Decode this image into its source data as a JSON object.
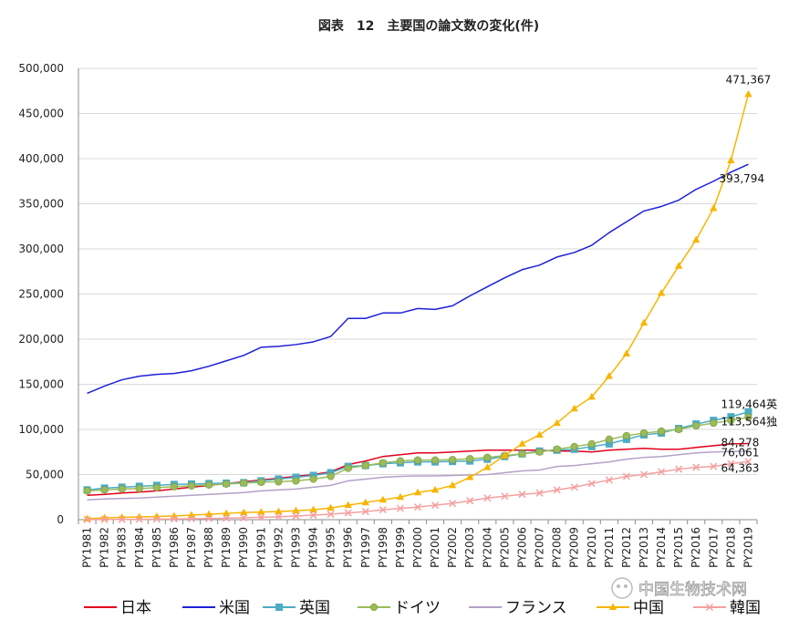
{
  "chart_data": {
    "type": "line",
    "title": "図表　12　主要国の論文数の変化(件)",
    "xlabel": "",
    "ylabel": "",
    "ylim": [
      0,
      500000
    ],
    "yticks": [
      0,
      50000,
      100000,
      150000,
      200000,
      250000,
      300000,
      350000,
      400000,
      450000,
      500000
    ],
    "ytick_labels": [
      "0",
      "50,000",
      "100,000",
      "150,000",
      "200,000",
      "250,000",
      "300,000",
      "350,000",
      "400,000",
      "450,000",
      "500,000"
    ],
    "grid": "horizontal",
    "legend_position": "bottom",
    "categories": [
      "PY1981",
      "PY1982",
      "PY1983",
      "PY1984",
      "PY1985",
      "PY1986",
      "PY1987",
      "PY1988",
      "PY1989",
      "PY1990",
      "PY1991",
      "PY1992",
      "PY1993",
      "PY1994",
      "PY1995",
      "PY1996",
      "PY1997",
      "PY1998",
      "PY1999",
      "PY2000",
      "PY2001",
      "PY2002",
      "PY2003",
      "PY2004",
      "PY2005",
      "PY2006",
      "PY2007",
      "PY2008",
      "PY2009",
      "PY2010",
      "PY2011",
      "PY2012",
      "PY2013",
      "PY2014",
      "PY2015",
      "PY2016",
      "PY2017",
      "PY2018",
      "PY2019"
    ],
    "series": [
      {
        "name": "日本",
        "color": "#e3001b",
        "marker": "none",
        "values": [
          27000,
          28000,
          29500,
          30500,
          32000,
          34000,
          36000,
          38000,
          40000,
          42000,
          44000,
          46000,
          48000,
          50000,
          53000,
          61000,
          65000,
          70000,
          72000,
          74000,
          74000,
          75000,
          76000,
          77000,
          77000,
          77000,
          77000,
          76000,
          76000,
          75000,
          77000,
          78000,
          79000,
          78000,
          78000,
          80000,
          82000,
          84000,
          84278
        ]
      },
      {
        "name": "米国",
        "color": "#1f1fd6",
        "marker": "none",
        "values": [
          140000,
          148000,
          155000,
          159000,
          161000,
          162000,
          165000,
          170000,
          176000,
          182000,
          191000,
          192000,
          194000,
          197000,
          203000,
          223000,
          223000,
          229000,
          229000,
          234000,
          233000,
          237000,
          248000,
          258000,
          268000,
          277000,
          282000,
          291000,
          296000,
          304000,
          318000,
          330000,
          342000,
          347000,
          354000,
          366000,
          375000,
          385000,
          393794
        ]
      },
      {
        "name": "英国",
        "color": "#4bacc6",
        "marker": "square",
        "values": [
          33000,
          35000,
          36000,
          37000,
          38000,
          39000,
          39500,
          40000,
          40500,
          41000,
          43000,
          45000,
          47000,
          49000,
          52000,
          59000,
          60000,
          62000,
          63000,
          64000,
          64000,
          64500,
          65000,
          67000,
          70000,
          73000,
          76000,
          77000,
          78000,
          81000,
          84000,
          89000,
          94000,
          96000,
          101000,
          106000,
          110000,
          114000,
          119464
        ]
      },
      {
        "name": "ドイツ",
        "color": "#9bbb59",
        "marker": "circle",
        "values": [
          32000,
          33000,
          34000,
          34500,
          35500,
          36500,
          37500,
          38500,
          39500,
          40500,
          41500,
          42000,
          43000,
          45000,
          48000,
          57000,
          60000,
          63000,
          65000,
          66000,
          66000,
          66500,
          67500,
          69000,
          71000,
          73000,
          75000,
          78000,
          81000,
          84000,
          89000,
          93000,
          96000,
          98000,
          100000,
          104000,
          107000,
          110000,
          113564
        ]
      },
      {
        "name": "フランス",
        "color": "#b3a2c7",
        "marker": "none",
        "values": [
          22000,
          23000,
          23500,
          24000,
          25000,
          26000,
          27000,
          28000,
          29000,
          30000,
          32000,
          33000,
          34000,
          36000,
          38000,
          43000,
          45000,
          47000,
          48000,
          48500,
          48500,
          49000,
          49500,
          50000,
          52000,
          54000,
          55000,
          59000,
          60000,
          62000,
          64000,
          67000,
          69000,
          70000,
          72000,
          74000,
          75000,
          75500,
          76061
        ]
      },
      {
        "name": "中国",
        "color": "#f7b500",
        "marker": "triangle",
        "values": [
          1000,
          2000,
          2500,
          3000,
          3500,
          4000,
          5000,
          6000,
          7000,
          8000,
          8500,
          9000,
          10000,
          11000,
          13000,
          16000,
          19000,
          22000,
          25000,
          30000,
          33000,
          38000,
          47000,
          58000,
          71000,
          84000,
          94000,
          107000,
          123000,
          136000,
          159000,
          184000,
          218000,
          251000,
          281000,
          310000,
          345000,
          398000,
          471367
        ]
      },
      {
        "name": "韓国",
        "color": "#f4a0a0",
        "marker": "x",
        "values": [
          100,
          200,
          300,
          400,
          600,
          800,
          1000,
          1300,
          1700,
          2100,
          2700,
          3300,
          4000,
          5000,
          6000,
          7500,
          9000,
          11000,
          12500,
          14000,
          16000,
          18000,
          21000,
          24000,
          26000,
          28000,
          29500,
          33000,
          36000,
          40000,
          44000,
          48000,
          50000,
          53000,
          56000,
          58000,
          59000,
          62000,
          64363
        ]
      }
    ],
    "annotations": [
      {
        "text": "471,367",
        "series": "中国"
      },
      {
        "text": "393,794",
        "series": "米国"
      },
      {
        "text": "119,464英",
        "series": "英国"
      },
      {
        "text": "113,564独",
        "series": "ドイツ"
      },
      {
        "text": "84,278",
        "series": "日本"
      },
      {
        "text": "76,061",
        "series": "フランス"
      },
      {
        "text": "64,363",
        "series": "韓国"
      }
    ]
  },
  "watermark": {
    "text": "中国生物技术网"
  }
}
